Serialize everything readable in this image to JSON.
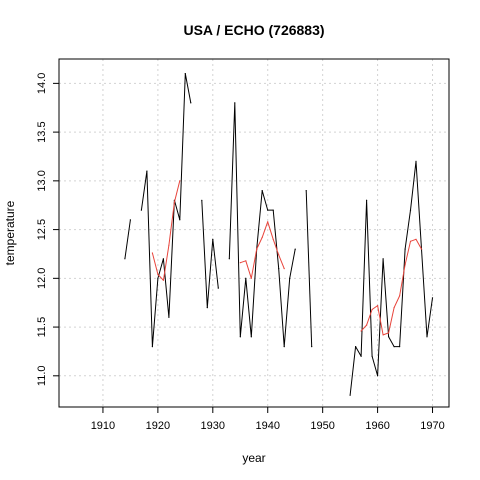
{
  "chart_data": {
    "type": "line",
    "title": "USA / ECHO (726883)",
    "xlabel": "year",
    "ylabel": "temperature",
    "xlim": [
      1902,
      1973
    ],
    "ylim": [
      10.68,
      14.25
    ],
    "xticks": [
      1910,
      1920,
      1930,
      1940,
      1950,
      1960,
      1970
    ],
    "yticks": [
      11.0,
      11.5,
      12.0,
      12.5,
      13.0,
      13.5,
      14.0
    ],
    "ytick_labels": [
      "11.0",
      "11.5",
      "12.0",
      "12.5",
      "13.0",
      "13.5",
      "14.0"
    ],
    "grid": true,
    "series": [
      {
        "color": "#000000",
        "x": [
          1914,
          1915,
          1916,
          1917,
          1918,
          1919,
          1920,
          1921,
          1922,
          1923,
          1924,
          1925,
          1926,
          1927,
          1928,
          1929,
          1930,
          1931,
          1932,
          1933,
          1934,
          1935,
          1936,
          1937,
          1938,
          1939,
          1940,
          1941,
          1942,
          1943,
          1944,
          1945,
          1946,
          1947,
          1948,
          1949,
          1950,
          1951,
          1952,
          1953,
          1954,
          1955,
          1956,
          1957,
          1958,
          1959,
          1960,
          1961,
          1962,
          1963,
          1964,
          1965,
          1966,
          1967,
          1968,
          1969,
          1970
        ],
        "values": [
          12.2,
          12.6,
          null,
          12.7,
          13.1,
          11.3,
          12.0,
          12.2,
          11.6,
          12.8,
          12.6,
          14.1,
          13.8,
          null,
          12.8,
          11.7,
          12.4,
          11.9,
          null,
          12.2,
          13.8,
          11.4,
          12.0,
          11.4,
          12.3,
          12.9,
          12.7,
          12.7,
          12.1,
          11.3,
          12.0,
          12.3,
          null,
          12.9,
          11.3,
          null,
          null,
          null,
          null,
          null,
          null,
          10.8,
          11.3,
          11.2,
          12.8,
          11.2,
          11.0,
          12.2,
          11.4,
          11.3,
          11.3,
          12.3,
          12.7,
          13.2,
          12.3,
          11.4,
          11.8
        ]
      },
      {
        "color": "#e8453c",
        "x": [
          1914,
          1915,
          1916,
          1917,
          1918,
          1919,
          1920,
          1921,
          1922,
          1923,
          1924,
          1925,
          1926,
          1927,
          1928,
          1929,
          1930,
          1931,
          1932,
          1933,
          1934,
          1935,
          1936,
          1937,
          1938,
          1939,
          1940,
          1941,
          1942,
          1943,
          1944,
          1945,
          1946,
          1947,
          1948,
          1949,
          1950,
          1951,
          1952,
          1953,
          1954,
          1955,
          1956,
          1957,
          1958,
          1959,
          1960,
          1961,
          1962,
          1963,
          1964,
          1965,
          1966,
          1967,
          1968,
          1969,
          1970
        ],
        "values": [
          null,
          null,
          null,
          null,
          null,
          12.26,
          12.04,
          11.98,
          12.34,
          12.78,
          13.0,
          null,
          null,
          null,
          null,
          null,
          null,
          null,
          null,
          null,
          null,
          12.16,
          12.18,
          12.0,
          12.3,
          12.42,
          12.58,
          12.4,
          12.24,
          12.1,
          null,
          null,
          null,
          null,
          null,
          null,
          null,
          null,
          null,
          null,
          null,
          null,
          null,
          11.46,
          11.52,
          11.68,
          11.72,
          11.42,
          11.44,
          11.7,
          11.82,
          12.14,
          12.38,
          12.4,
          12.3,
          null,
          null
        ]
      }
    ]
  }
}
